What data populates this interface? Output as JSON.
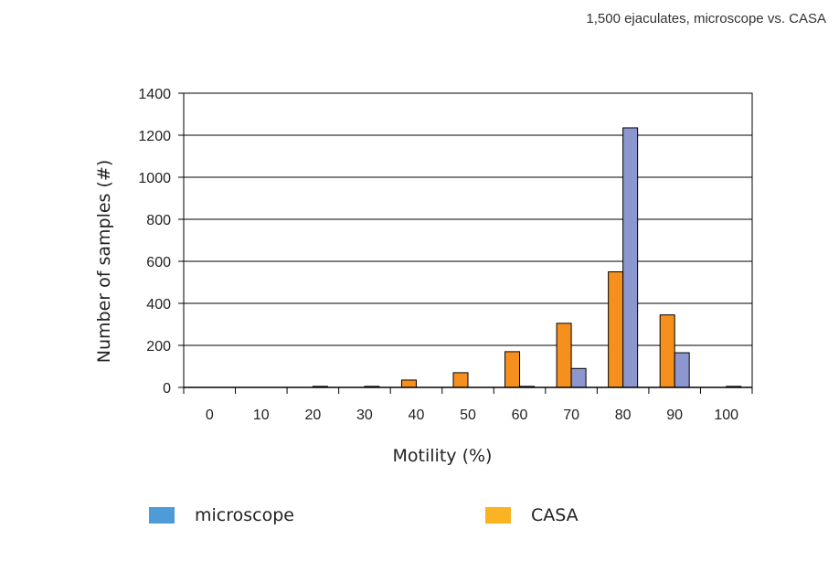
{
  "subtitle": "1,500 ejaculates, microscope vs. CASA",
  "chart_data": {
    "type": "bar",
    "title": "",
    "xlabel": "Motility (%)",
    "ylabel": "Number of samples (#)",
    "ylim": [
      0,
      1400
    ],
    "yticks": [
      0,
      200,
      400,
      600,
      800,
      1000,
      1200,
      1400
    ],
    "categories": [
      "0",
      "10",
      "20",
      "30",
      "40",
      "50",
      "60",
      "70",
      "80",
      "90",
      "100"
    ],
    "grid": true,
    "legend_position": "bottom",
    "series": [
      {
        "name": "CASA",
        "color": "#F5901E",
        "values": [
          0,
          0,
          0,
          0,
          35,
          70,
          170,
          305,
          550,
          345,
          0
        ]
      },
      {
        "name": "microscope",
        "color": "#8C96CF",
        "values": [
          0,
          0,
          5,
          5,
          0,
          0,
          5,
          90,
          1235,
          165,
          5
        ]
      }
    ]
  },
  "legend": [
    {
      "name": "microscope",
      "color": "#4F9BD8"
    },
    {
      "name": "CASA",
      "color": "#F9B323"
    }
  ]
}
